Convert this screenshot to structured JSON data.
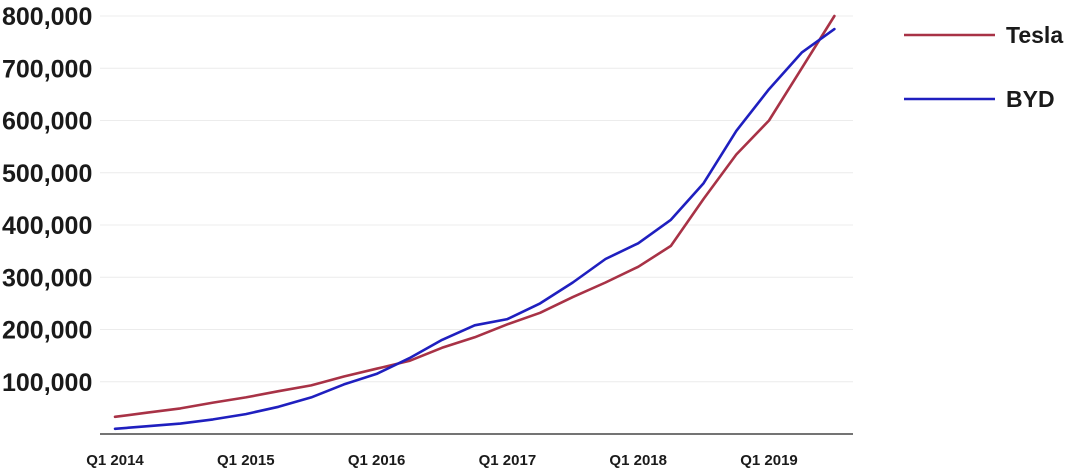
{
  "chart_data": {
    "type": "line",
    "title": "",
    "xlabel": "",
    "ylabel": "",
    "x": [
      "Q1 2014",
      "Q2 2014",
      "Q3 2014",
      "Q4 2014",
      "Q1 2015",
      "Q2 2015",
      "Q3 2015",
      "Q4 2015",
      "Q1 2016",
      "Q2 2016",
      "Q3 2016",
      "Q4 2016",
      "Q1 2017",
      "Q2 2017",
      "Q3 2017",
      "Q4 2017",
      "Q1 2018",
      "Q2 2018",
      "Q3 2018",
      "Q4 2018",
      "Q1 2019",
      "Q2 2019",
      "Q3 2019"
    ],
    "x_tick_labels": [
      "Q1 2014",
      "Q1 2015",
      "Q1 2016",
      "Q1 2017",
      "Q1 2018",
      "Q1 2019"
    ],
    "y_tick_labels": [
      "100,000",
      "200,000",
      "300,000",
      "400,000",
      "500,000",
      "600,000",
      "700,000",
      "800,000"
    ],
    "ylim": [
      0,
      800000
    ],
    "grid": true,
    "legend_position": "right",
    "series": [
      {
        "name": "Tesla",
        "color": "#a83246",
        "values": [
          33000,
          41000,
          49000,
          60000,
          70000,
          82000,
          93000,
          110000,
          125000,
          140000,
          165000,
          185000,
          210000,
          232000,
          262000,
          290000,
          320000,
          360000,
          450000,
          535000,
          600000,
          700000,
          800000
        ]
      },
      {
        "name": "BYD",
        "color": "#1f1fbf",
        "values": [
          10000,
          15000,
          20000,
          28000,
          38000,
          52000,
          70000,
          95000,
          115000,
          145000,
          180000,
          208000,
          220000,
          250000,
          290000,
          335000,
          365000,
          410000,
          480000,
          580000,
          660000,
          730000,
          775000
        ]
      }
    ]
  }
}
